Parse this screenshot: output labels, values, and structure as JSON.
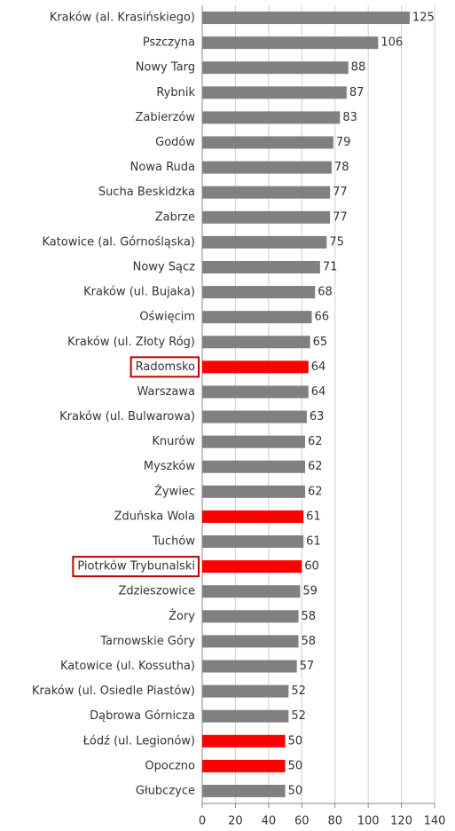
{
  "chart_data": {
    "type": "barh",
    "categories": [
      "Kraków (al. Krasińskiego)",
      "Pszczyna",
      "Nowy Targ",
      "Rybnik",
      "Zabierzów",
      "Godów",
      "Nowa Ruda",
      "Sucha Beskidzka",
      "Zabrze",
      "Katowice (al. Górnośląska)",
      "Nowy Sącz",
      "Kraków (ul. Bujaka)",
      "Oświęcim",
      "Kraków (ul. Złoty Róg)",
      "Radomsko",
      "Warszawa",
      "Kraków (ul. Bulwarowa)",
      "Knurów",
      "Myszków",
      "Żywiec",
      "Zduńska Wola",
      "Tuchów",
      "Piotrków Trybunalski",
      "Zdzieszowice",
      "Żory",
      "Tarnowskie Góry",
      "Katowice (ul. Kossutha)",
      "Kraków (ul. Osiedle Piastów)",
      "Dąbrowa Górnicza",
      "Łódź (ul. Legionów)",
      "Opoczno",
      "Głubczyce"
    ],
    "values": [
      125,
      106,
      88,
      87,
      83,
      79,
      78,
      77,
      77,
      75,
      71,
      68,
      66,
      65,
      64,
      64,
      63,
      62,
      62,
      62,
      61,
      61,
      60,
      59,
      58,
      58,
      57,
      52,
      52,
      50,
      50,
      50
    ],
    "colors": [
      "#808080",
      "#808080",
      "#808080",
      "#808080",
      "#808080",
      "#808080",
      "#808080",
      "#808080",
      "#808080",
      "#808080",
      "#808080",
      "#808080",
      "#808080",
      "#808080",
      "#ff0000",
      "#808080",
      "#808080",
      "#808080",
      "#808080",
      "#808080",
      "#ff0000",
      "#808080",
      "#ff0000",
      "#808080",
      "#808080",
      "#808080",
      "#808080",
      "#808080",
      "#808080",
      "#ff0000",
      "#ff0000",
      "#808080"
    ],
    "xlim": [
      0,
      140
    ],
    "xticks": [
      0,
      20,
      40,
      60,
      80,
      100,
      120,
      140
    ],
    "grid": true
  }
}
